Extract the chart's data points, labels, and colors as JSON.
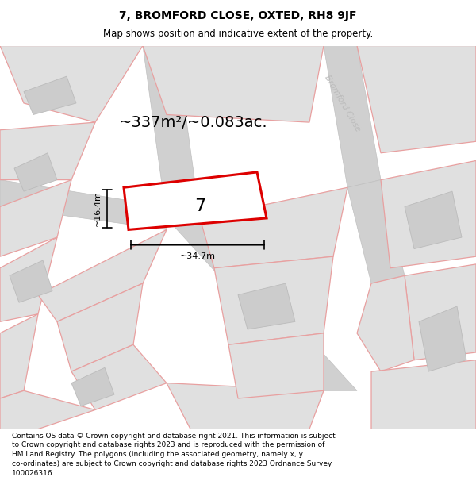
{
  "title_line1": "7, BROMFORD CLOSE, OXTED, RH8 9JF",
  "title_line2": "Map shows position and indicative extent of the property.",
  "area_text": "~337m²/~0.083ac.",
  "width_label": "~34.7m",
  "height_label": "~16.4m",
  "plot_label": "7",
  "footer_text": "Contains OS data © Crown copyright and database right 2021. This information is subject to Crown copyright and database rights 2023 and is reproduced with the permission of HM Land Registry. The polygons (including the associated geometry, namely x, y co-ordinates) are subject to Crown copyright and database rights 2023 Ordnance Survey 100026316.",
  "plot_edge_color": "#dd0000",
  "road_label": "Bromford Close",
  "road_label_color": "#bbbbbb",
  "background_color": "#ffffff",
  "map_bg": "#e8e8e8",
  "parcel_fill": "#e0e0e0",
  "parcel_edge": "#e8a0a0",
  "road_fill": "#d0d0d0",
  "dark_parcel_fill": "#cccccc",
  "dark_parcel_edge": "#bbbbbb",
  "title_fontsize": 10,
  "subtitle_fontsize": 8.5,
  "footer_fontsize": 6.5,
  "area_fontsize": 14,
  "dim_fontsize": 8,
  "plot_label_fontsize": 16
}
